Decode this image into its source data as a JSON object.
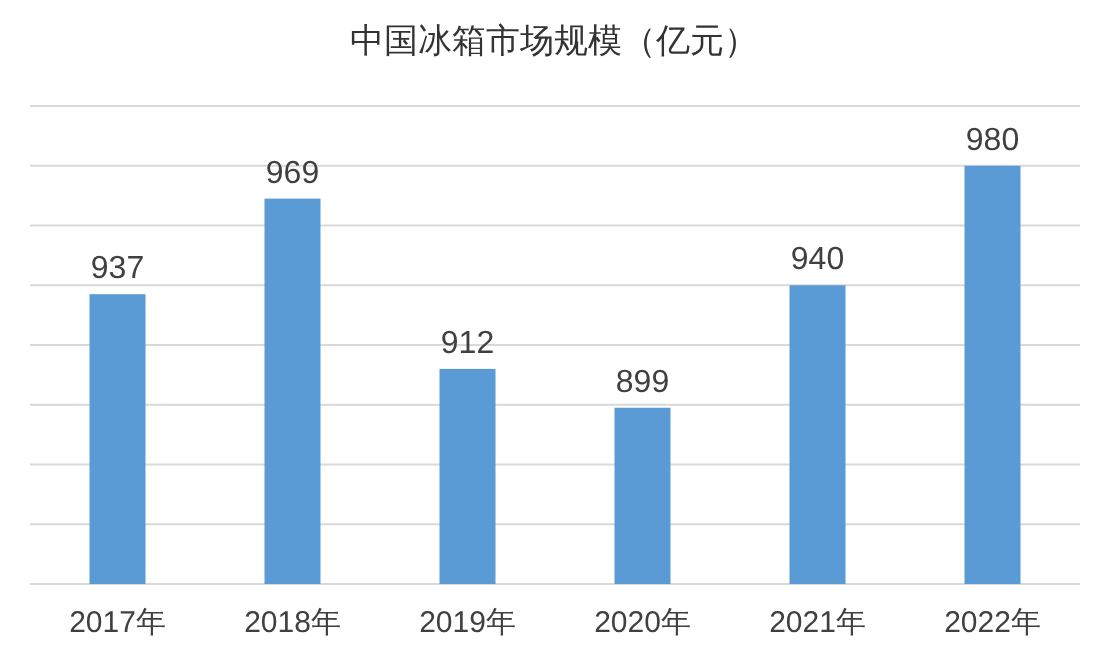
{
  "chart_data": {
    "type": "bar",
    "title": "中国冰箱市场规模（亿元）",
    "categories": [
      "2017年",
      "2018年",
      "2019年",
      "2020年",
      "2021年",
      "2022年"
    ],
    "values": [
      937,
      969,
      912,
      899,
      940,
      980
    ],
    "color": "#5b9bd5",
    "ylim": [
      840,
      1000
    ],
    "yticks": [
      {
        "value": 840,
        "label": null
      },
      {
        "value": 860,
        "label": null
      },
      {
        "value": 880,
        "label": null
      },
      {
        "value": 900,
        "label": null
      },
      {
        "value": 920,
        "label": null
      },
      {
        "value": 940,
        "label": null
      },
      {
        "value": 960,
        "label": null
      },
      {
        "value": 980,
        "label": null
      },
      {
        "value": 1000,
        "label": null
      }
    ],
    "grid": "y",
    "data_labels": true
  }
}
